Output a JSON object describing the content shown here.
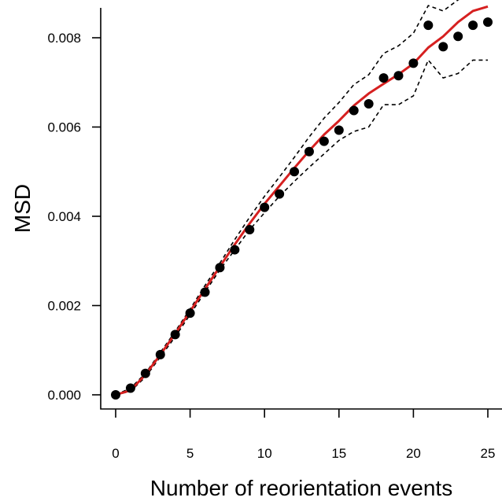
{
  "chart_data": {
    "type": "scatter",
    "xlabel": "Number of reorientation events",
    "ylabel": "MSD",
    "xlim": [
      0,
      25
    ],
    "ylim": [
      0,
      0.0087
    ],
    "x_ticks": [
      0,
      5,
      10,
      15,
      20,
      25
    ],
    "x_tick_labels": [
      "0",
      "5",
      "10",
      "15",
      "20",
      "25"
    ],
    "y_ticks": [
      0,
      0.002,
      0.004,
      0.006,
      0.008
    ],
    "y_tick_labels": [
      "0.000",
      "0.002",
      "0.004",
      "0.006",
      "0.008"
    ],
    "grid": false,
    "legend": "none",
    "x": [
      0,
      1,
      2,
      3,
      4,
      5,
      6,
      7,
      8,
      9,
      10,
      11,
      12,
      13,
      14,
      15,
      16,
      17,
      18,
      19,
      20,
      21,
      22,
      23,
      24,
      25
    ],
    "series": [
      {
        "style": "points",
        "color": "#000000",
        "values": [
          0.0,
          0.00015,
          0.00048,
          0.0009,
          0.00135,
          0.00183,
          0.0023,
          0.00285,
          0.00325,
          0.0037,
          0.0042,
          0.0045,
          0.005,
          0.00545,
          0.00568,
          0.00593,
          0.00637,
          0.00652,
          0.0071,
          0.00715,
          0.00743,
          0.00828,
          0.0078,
          0.00803,
          0.00828,
          0.00835
        ]
      },
      {
        "style": "line",
        "color": "#d62020",
        "values": [
          0.0,
          0.0001,
          0.00045,
          0.0009,
          0.00137,
          0.00187,
          0.00237,
          0.00287,
          0.00337,
          0.00384,
          0.00428,
          0.00468,
          0.00508,
          0.00547,
          0.00583,
          0.00614,
          0.00648,
          0.00675,
          0.00697,
          0.00718,
          0.00742,
          0.00778,
          0.00803,
          0.00835,
          0.0086,
          0.0087
        ]
      },
      {
        "style": "dashed",
        "color": "#000000",
        "values": [
          0.0,
          0.00015,
          0.00048,
          0.00095,
          0.00142,
          0.00192,
          0.00245,
          0.00295,
          0.00348,
          0.00398,
          0.00445,
          0.00488,
          0.00532,
          0.00578,
          0.0062,
          0.00655,
          0.00695,
          0.00717,
          0.00765,
          0.00782,
          0.0081,
          0.00872,
          0.0086,
          0.00885,
          0.009,
          0.0091
        ]
      },
      {
        "style": "dashed",
        "color": "#000000",
        "values": [
          0.0,
          8e-05,
          0.0004,
          0.00085,
          0.0013,
          0.0018,
          0.0023,
          0.0028,
          0.00325,
          0.0037,
          0.00408,
          0.00445,
          0.00478,
          0.0051,
          0.0054,
          0.0057,
          0.0059,
          0.006,
          0.0065,
          0.0065,
          0.0067,
          0.0075,
          0.0071,
          0.0072,
          0.0075,
          0.0075
        ]
      }
    ]
  }
}
